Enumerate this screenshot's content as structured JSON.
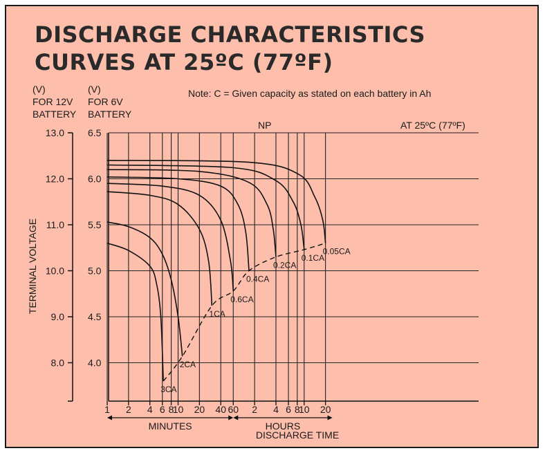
{
  "chart_data": {
    "type": "line",
    "title_line1": "DISCHARGE CHARACTERISTICS",
    "title_line2": "CURVES AT 25ºC (77ºF)",
    "note": "Note: C = Given capacity as stated on each battery in Ah",
    "subtitle": "NP",
    "condition": "AT 25ºC (77ºF)",
    "ylabel": "TERMINAL VOLTAGE",
    "xlabel": "DISCHARGE TIME",
    "y12_header": [
      "(V)",
      "FOR 12V",
      "BATTERY"
    ],
    "y6_header": [
      "(V)",
      "FOR 6V",
      "BATTERY"
    ],
    "y12_ticks": [
      "13.0",
      "12.0",
      "11.0",
      "10.0",
      "9.0",
      "8.0"
    ],
    "y6_ticks": [
      "6.5",
      "6.0",
      "5.5",
      "5.0",
      "4.5",
      "4.0"
    ],
    "y6_range": [
      3.6,
      6.5
    ],
    "x_scale": "log",
    "x_unit": "minutes",
    "x_range": [
      1,
      1500
    ],
    "x_ticks": [
      {
        "minutes": 1,
        "label": "1"
      },
      {
        "minutes": 2,
        "label": "2"
      },
      {
        "minutes": 4,
        "label": "4"
      },
      {
        "minutes": 6,
        "label": "6"
      },
      {
        "minutes": 8,
        "label": "8"
      },
      {
        "minutes": 10,
        "label": "10"
      },
      {
        "minutes": 20,
        "label": "20"
      },
      {
        "minutes": 40,
        "label": "40"
      },
      {
        "minutes": 60,
        "label": "60"
      },
      {
        "minutes": 120,
        "label": "2"
      },
      {
        "minutes": 240,
        "label": "4"
      },
      {
        "minutes": 360,
        "label": "6"
      },
      {
        "minutes": 480,
        "label": "8"
      },
      {
        "minutes": 600,
        "label": "10"
      },
      {
        "minutes": 1200,
        "label": "20"
      }
    ],
    "grid_minutes": [
      1,
      2,
      4,
      6,
      8,
      10,
      20,
      40,
      60,
      120,
      240,
      360,
      480,
      600,
      1200
    ],
    "time_sections": [
      {
        "label": "MINUTES",
        "from": 1,
        "to": 60
      },
      {
        "label": "HOURS",
        "from": 60,
        "to": 1500
      }
    ],
    "series": [
      {
        "name": "3CA",
        "points": [
          [
            1,
            5.3
          ],
          [
            2,
            5.22
          ],
          [
            4,
            5.05
          ],
          [
            5,
            4.85
          ],
          [
            5.7,
            4.5
          ],
          [
            6.2,
            3.8
          ]
        ]
      },
      {
        "name": "2CA",
        "points": [
          [
            1,
            5.53
          ],
          [
            2,
            5.48
          ],
          [
            4,
            5.36
          ],
          [
            6,
            5.18
          ],
          [
            8,
            4.9
          ],
          [
            10,
            4.5
          ],
          [
            11.5,
            4.07
          ]
        ]
      },
      {
        "name": "1CA",
        "points": [
          [
            1,
            5.86
          ],
          [
            4,
            5.82
          ],
          [
            10,
            5.72
          ],
          [
            20,
            5.45
          ],
          [
            27,
            5.1
          ],
          [
            30,
            4.62
          ]
        ]
      },
      {
        "name": "0.6CA",
        "points": [
          [
            1,
            5.95
          ],
          [
            6,
            5.92
          ],
          [
            20,
            5.82
          ],
          [
            40,
            5.55
          ],
          [
            55,
            5.1
          ],
          [
            60,
            4.78
          ]
        ]
      },
      {
        "name": "0.4CA",
        "points": [
          [
            1,
            6.02
          ],
          [
            10,
            6.0
          ],
          [
            40,
            5.92
          ],
          [
            70,
            5.72
          ],
          [
            90,
            5.42
          ],
          [
            100,
            5.0
          ]
        ]
      },
      {
        "name": "0.2CA",
        "points": [
          [
            1,
            6.1
          ],
          [
            20,
            6.08
          ],
          [
            100,
            5.96
          ],
          [
            180,
            5.72
          ],
          [
            220,
            5.45
          ],
          [
            240,
            5.15
          ]
        ]
      },
      {
        "name": "0.1CA",
        "points": [
          [
            1,
            6.15
          ],
          [
            60,
            6.12
          ],
          [
            240,
            5.98
          ],
          [
            420,
            5.75
          ],
          [
            540,
            5.5
          ],
          [
            600,
            5.23
          ]
        ]
      },
      {
        "name": "0.05CA",
        "points": [
          [
            1,
            6.2
          ],
          [
            100,
            6.18
          ],
          [
            500,
            6.05
          ],
          [
            850,
            5.8
          ],
          [
            1100,
            5.55
          ],
          [
            1200,
            5.3
          ]
        ]
      }
    ],
    "cutoff_curve": [
      [
        6.2,
        3.8
      ],
      [
        11.5,
        4.07
      ],
      [
        30,
        4.62
      ],
      [
        60,
        4.78
      ],
      [
        100,
        5.0
      ],
      [
        240,
        5.15
      ],
      [
        600,
        5.23
      ],
      [
        1200,
        5.3
      ]
    ],
    "grid": true,
    "legend": "none"
  }
}
